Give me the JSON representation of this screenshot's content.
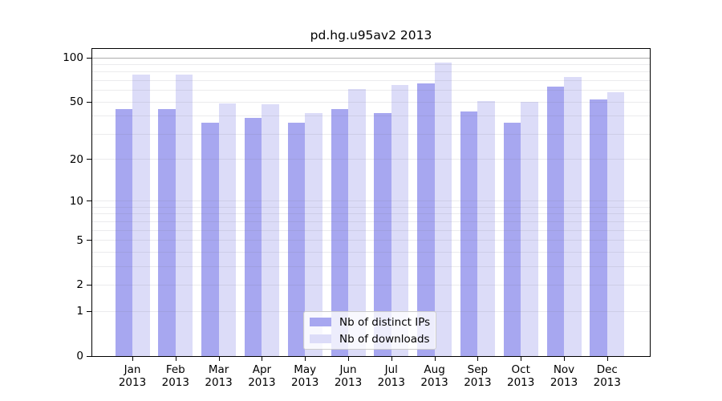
{
  "title": "pd.hg.u95av2 2013",
  "legend": {
    "items": [
      {
        "label": "Nb of distinct IPs",
        "color": "#a7a7f0"
      },
      {
        "label": "Nb of downloads",
        "color": "#dcdcf8"
      }
    ],
    "location": "lower center"
  },
  "chart_data": {
    "type": "bar",
    "title": "pd.hg.u95av2 2013",
    "categories": [
      "Jan 2013",
      "Feb 2013",
      "Mar 2013",
      "Apr 2013",
      "May 2013",
      "Jun 2013",
      "Jul 2013",
      "Aug 2013",
      "Sep 2013",
      "Oct 2013",
      "Nov 2013",
      "Dec 2013"
    ],
    "series": [
      {
        "name": "Nb of distinct IPs",
        "color": "#a7a7f0",
        "values": [
          45,
          45,
          36,
          39,
          36,
          45,
          42,
          67,
          43,
          36,
          64,
          52
        ]
      },
      {
        "name": "Nb of downloads",
        "color": "#dcdcf8",
        "values": [
          77,
          77,
          49,
          48,
          42,
          61,
          65,
          93,
          51,
          50,
          74,
          58
        ]
      }
    ],
    "xlabel": "",
    "ylabel": "",
    "yticks": [
      0,
      1,
      2,
      5,
      10,
      20,
      50,
      100
    ],
    "y_scale": "log10(1+x)",
    "ylim": [
      0,
      115
    ],
    "grid": true,
    "legend_position": "lower center"
  }
}
